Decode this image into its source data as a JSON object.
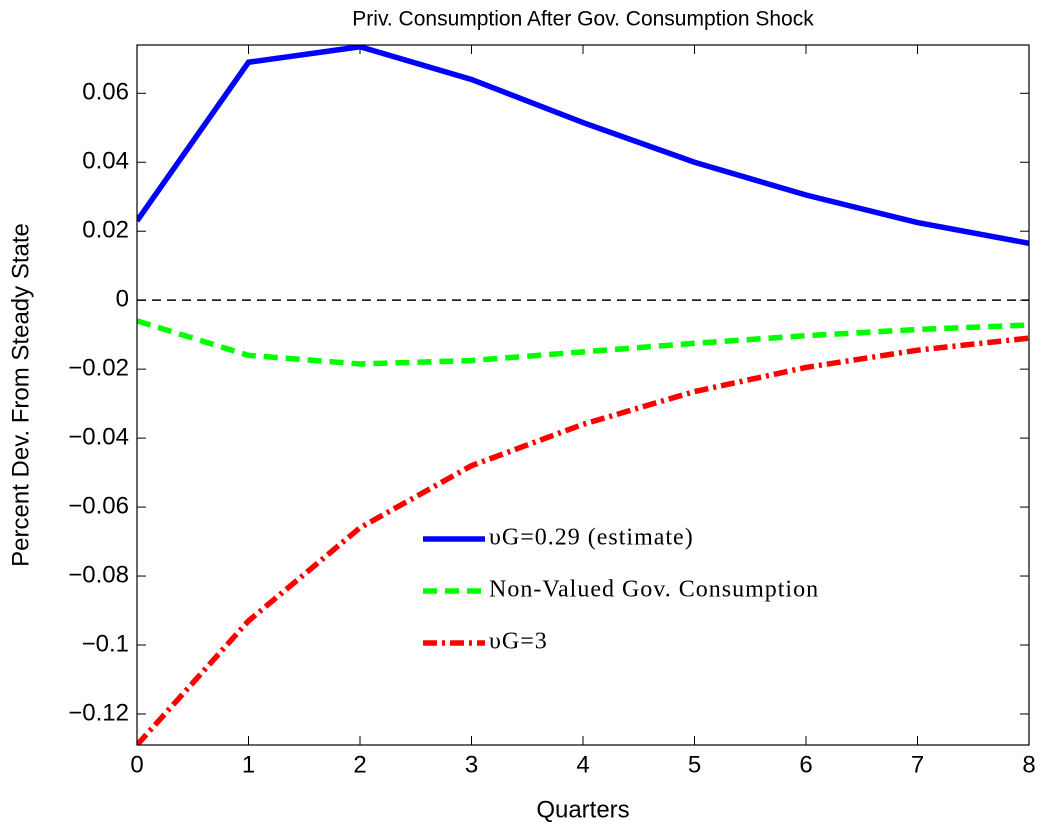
{
  "chart_data": {
    "type": "line",
    "title": "Priv. Consumption After Gov. Consumption Shock",
    "x_label": "Quarters",
    "y_label": "Percent Dev. From Steady State",
    "x": [
      0,
      1,
      2,
      3,
      4,
      5,
      6,
      7,
      8
    ],
    "series": [
      {
        "name": "υG=0.29 (estimate)",
        "color": "#0000ff",
        "style": "solid",
        "values": [
          0.023,
          0.069,
          0.0735,
          0.064,
          0.0515,
          0.04,
          0.0305,
          0.0225,
          0.0165
        ]
      },
      {
        "name": "Non-Valued Gov. Consumption",
        "color": "#00ff00",
        "style": "dashed",
        "values": [
          -0.006,
          -0.016,
          -0.0185,
          -0.0175,
          -0.015,
          -0.0125,
          -0.0103,
          -0.0085,
          -0.0072
        ]
      },
      {
        "name": "υG=3",
        "color": "#ff0000",
        "style": "dashdot",
        "values": [
          -0.129,
          -0.093,
          -0.066,
          -0.048,
          -0.036,
          -0.0265,
          -0.0195,
          -0.0145,
          -0.011
        ]
      }
    ],
    "xlim": [
      0,
      8
    ],
    "ylim": [
      -0.129,
      0.074
    ],
    "xticks": [
      0,
      1,
      2,
      3,
      4,
      5,
      6,
      7,
      8
    ],
    "yticks": [
      {
        "value": -0.12,
        "label": "−0.12"
      },
      {
        "value": -0.1,
        "label": "−0.1"
      },
      {
        "value": -0.08,
        "label": "−0.08"
      },
      {
        "value": -0.06,
        "label": "−0.06"
      },
      {
        "value": -0.04,
        "label": "−0.04"
      },
      {
        "value": -0.02,
        "label": "−0.02"
      },
      0,
      0.02,
      0.04,
      0.06
    ],
    "reference_line": 0,
    "grid": false
  }
}
